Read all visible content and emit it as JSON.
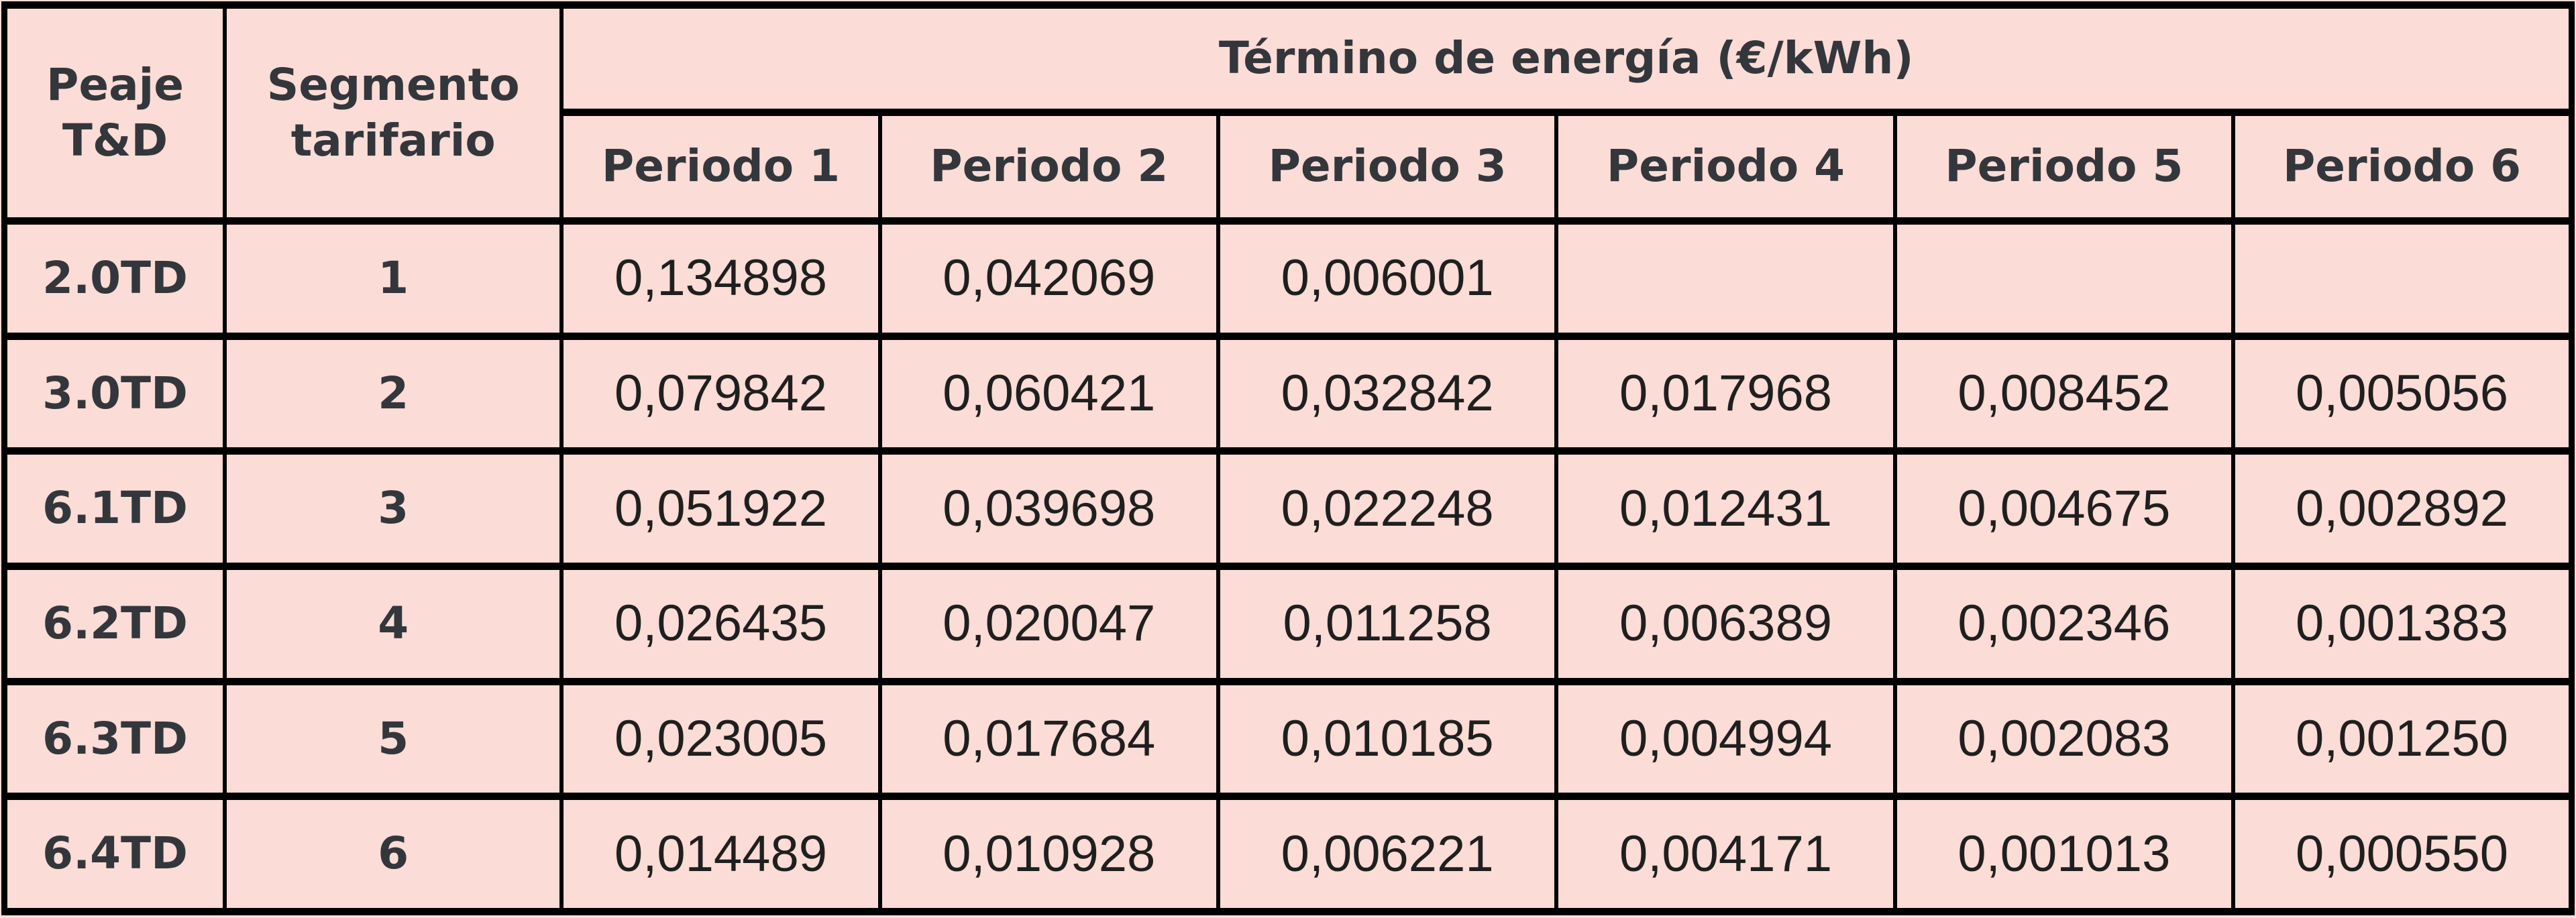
{
  "colors": {
    "background": "#fbdcd6",
    "border": "#000000",
    "header_text": "#33373c",
    "value_text": "#1f1f1f"
  },
  "table": {
    "header": {
      "peaje": "Peaje T&D",
      "segmento": "Segmento tarifario",
      "energia": "Término de energía (€/kWh)",
      "periods": [
        "Periodo 1",
        "Periodo 2",
        "Periodo 3",
        "Periodo 4",
        "Periodo 5",
        "Periodo 6"
      ]
    },
    "rows": [
      {
        "peaje": "2.0TD",
        "segmento": "1",
        "values": [
          "0,134898",
          "0,042069",
          "0,006001",
          "",
          "",
          ""
        ]
      },
      {
        "peaje": "3.0TD",
        "segmento": "2",
        "values": [
          "0,079842",
          "0,060421",
          "0,032842",
          "0,017968",
          "0,008452",
          "0,005056"
        ]
      },
      {
        "peaje": "6.1TD",
        "segmento": "3",
        "values": [
          "0,051922",
          "0,039698",
          "0,022248",
          "0,012431",
          "0,004675",
          "0,002892"
        ]
      },
      {
        "peaje": "6.2TD",
        "segmento": "4",
        "values": [
          "0,026435",
          "0,020047",
          "0,011258",
          "0,006389",
          "0,002346",
          "0,001383"
        ]
      },
      {
        "peaje": "6.3TD",
        "segmento": "5",
        "values": [
          "0,023005",
          "0,017684",
          "0,010185",
          "0,004994",
          "0,002083",
          "0,001250"
        ]
      },
      {
        "peaje": "6.4TD",
        "segmento": "6",
        "values": [
          "0,014489",
          "0,010928",
          "0,006221",
          "0,004171",
          "0,001013",
          "0,000550"
        ]
      }
    ]
  },
  "chart_data": {
    "type": "table",
    "title": "Término de energía (€/kWh)",
    "columns": [
      "Peaje T&D",
      "Segmento tarifario",
      "Periodo 1",
      "Periodo 2",
      "Periodo 3",
      "Periodo 4",
      "Periodo 5",
      "Periodo 6"
    ],
    "rows": [
      [
        "2.0TD",
        1,
        0.134898,
        0.042069,
        0.006001,
        null,
        null,
        null
      ],
      [
        "3.0TD",
        2,
        0.079842,
        0.060421,
        0.032842,
        0.017968,
        0.008452,
        0.005056
      ],
      [
        "6.1TD",
        3,
        0.051922,
        0.039698,
        0.022248,
        0.012431,
        0.004675,
        0.002892
      ],
      [
        "6.2TD",
        4,
        0.026435,
        0.020047,
        0.011258,
        0.006389,
        0.002346,
        0.001383
      ],
      [
        "6.3TD",
        5,
        0.023005,
        0.017684,
        0.010185,
        0.004994,
        0.002083,
        0.00125
      ],
      [
        "6.4TD",
        6,
        0.014489,
        0.010928,
        0.006221,
        0.004171,
        0.001013,
        0.00055
      ]
    ]
  }
}
